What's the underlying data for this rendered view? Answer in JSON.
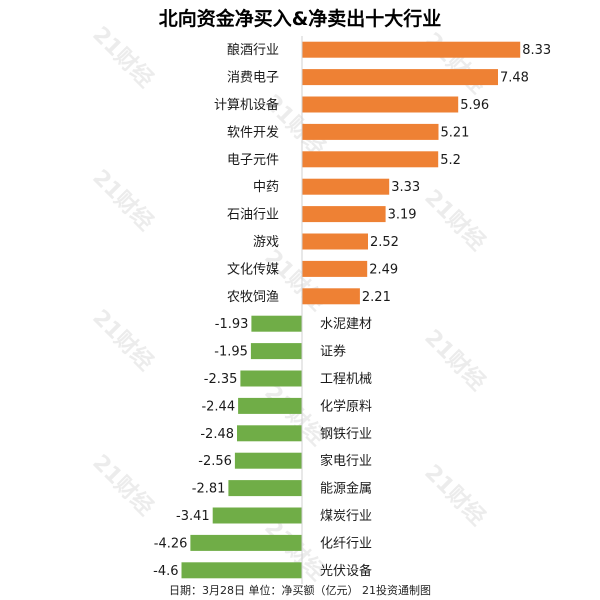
{
  "colors": {
    "positive": "#ee8134",
    "negative": "#70ad47",
    "text": "#1a1a1a"
  },
  "watermark": "21财经",
  "footer": "日期：3月28日 单位：净买额（亿元） 21投资通制图",
  "chart_data": {
    "type": "bar",
    "orientation": "horizontal",
    "title": "北向资金净买入&净卖出十大行业",
    "categories": [
      "酿酒行业",
      "消费电子",
      "计算机设备",
      "软件开发",
      "电子元件",
      "中药",
      "石油行业",
      "游戏",
      "文化传媒",
      "农牧饲渔",
      "水泥建材",
      "证券",
      "工程机械",
      "化学原料",
      "钢铁行业",
      "家电行业",
      "能源金属",
      "煤炭行业",
      "化纤行业",
      "光伏设备"
    ],
    "values": [
      8.33,
      7.48,
      5.96,
      5.21,
      5.2,
      3.33,
      3.19,
      2.52,
      2.49,
      2.21,
      -1.93,
      -1.95,
      -2.35,
      -2.44,
      -2.48,
      -2.56,
      -2.81,
      -3.41,
      -4.26,
      -4.6
    ],
    "value_labels": [
      "8.33",
      "7.48",
      "5.96",
      "5.21",
      "5.2",
      "3.33",
      "3.19",
      "2.52",
      "2.49",
      "2.21",
      "-1.93",
      "-1.95",
      "-2.35",
      "-2.44",
      "-2.48",
      "-2.56",
      "-2.81",
      "-3.41",
      "-4.26",
      "-4.6"
    ],
    "xlabel": "",
    "ylabel": "",
    "grid": false,
    "legend": "none"
  }
}
